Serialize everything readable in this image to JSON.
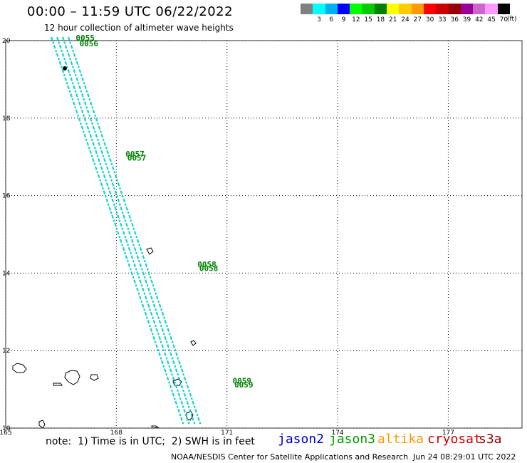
{
  "header": {
    "title": "00:00 – 11:59 UTC 06/22/2022",
    "subtitle": "12 hour collection of altimeter wave heights"
  },
  "legend": {
    "units": "(ft)",
    "bins": [
      {
        "label": "",
        "color": "#808080"
      },
      {
        "label": "3",
        "color": "#00ffff"
      },
      {
        "label": "6",
        "color": "#00b0f0"
      },
      {
        "label": "9",
        "color": "#0000ff"
      },
      {
        "label": "12",
        "color": "#00ff00"
      },
      {
        "label": "15",
        "color": "#00cc00"
      },
      {
        "label": "18",
        "color": "#008000"
      },
      {
        "label": "21",
        "color": "#ffff00"
      },
      {
        "label": "24",
        "color": "#ffcc00"
      },
      {
        "label": "27",
        "color": "#ff9900"
      },
      {
        "label": "30",
        "color": "#ff0000"
      },
      {
        "label": "33",
        "color": "#cc0000"
      },
      {
        "label": "36",
        "color": "#990000"
      },
      {
        "label": "39",
        "color": "#990099"
      },
      {
        "label": "42",
        "color": "#cc66cc"
      },
      {
        "label": "45",
        "color": "#ff99ff"
      },
      {
        "label": "70",
        "color": "#000000"
      }
    ]
  },
  "map": {
    "lon_ticks": [
      "165",
      "168",
      "171",
      "174",
      "177"
    ],
    "lat_ticks": [
      "20",
      "18",
      "16",
      "14",
      "12",
      "10"
    ],
    "track_color": "#00cccc",
    "marker_color": "#008000",
    "time_markers": [
      {
        "text": "0055",
        "lon": 166.9,
        "lat": 20.0
      },
      {
        "text": "0056",
        "lon": 167.0,
        "lat": 19.85
      },
      {
        "text": "0057",
        "lon": 168.25,
        "lat": 17.0
      },
      {
        "text": "0057",
        "lon": 168.3,
        "lat": 16.9
      },
      {
        "text": "0058",
        "lon": 170.2,
        "lat": 14.15
      },
      {
        "text": "0058",
        "lon": 170.25,
        "lat": 14.05
      },
      {
        "text": "0059",
        "lon": 171.15,
        "lat": 11.15
      },
      {
        "text": "0059",
        "lon": 171.2,
        "lat": 11.05
      }
    ]
  },
  "footer": {
    "note": "note:  1) Time is in UTC;  2) SWH is in feet",
    "satellites": [
      {
        "name": "jason2",
        "color": "#0000cc"
      },
      {
        "name": "jason3",
        "color": "#009900"
      },
      {
        "name": "altika",
        "color": "#ff9900"
      },
      {
        "name": "cryosat",
        "color": "#cc0000"
      },
      {
        "name": "s3a",
        "color": "#990000"
      }
    ],
    "credit": "NOAA/NESDIS Center for Satellite Applications and Research",
    "timestamp": "Jun 24 08:29:01 UTC 2022"
  }
}
